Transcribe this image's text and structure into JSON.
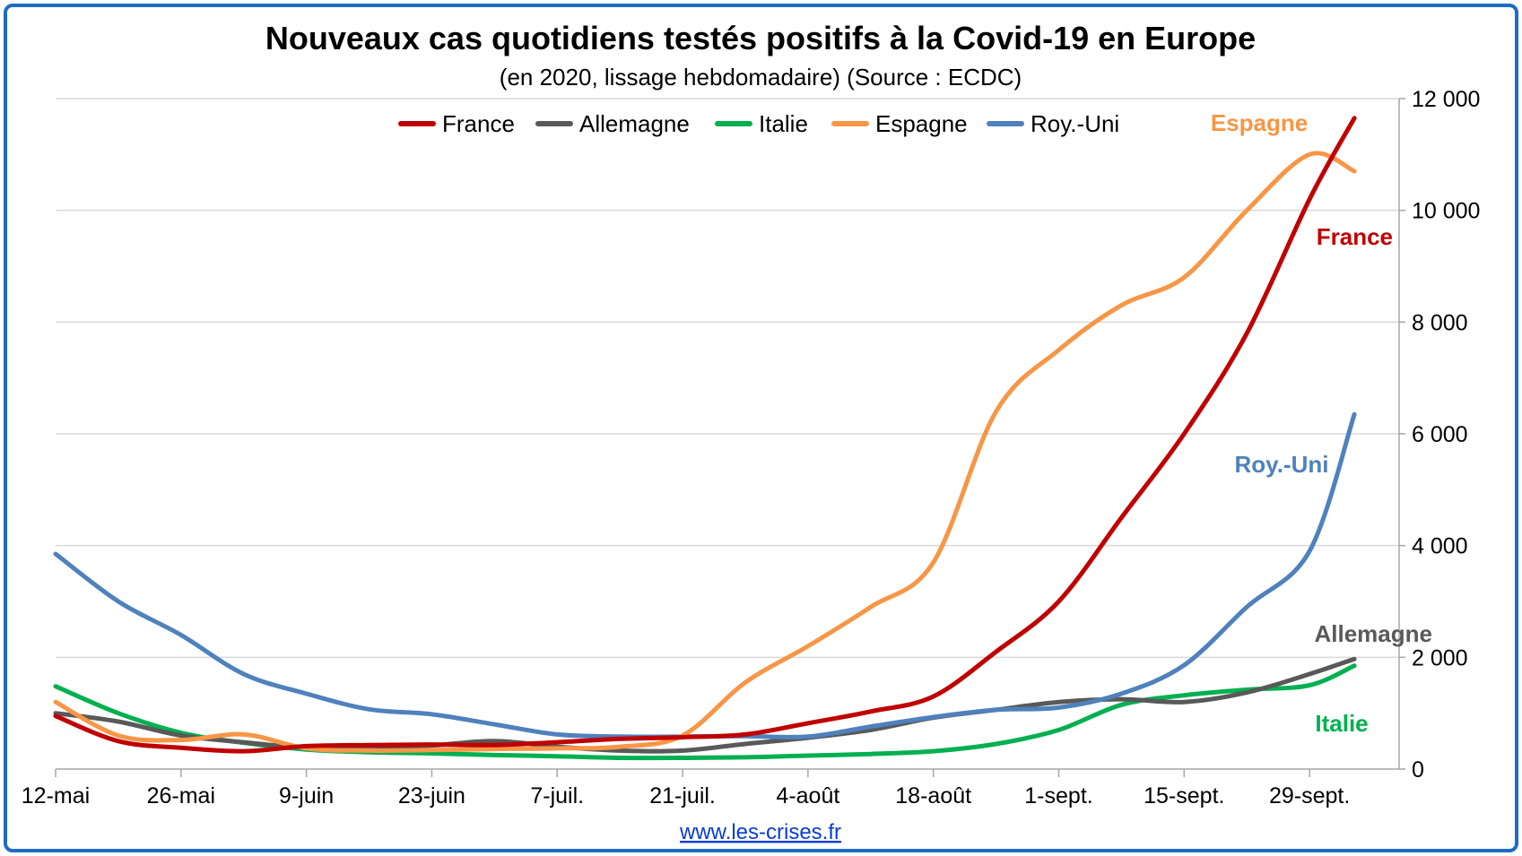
{
  "chart_data": {
    "type": "line",
    "title": "Nouveaux cas quotidiens testés positifs à la Covid-19 en Europe",
    "subtitle": "(en 2020, lissage hebdomadaire) (Source : ECDC)",
    "x_ticks": [
      "12-mai",
      "26-mai",
      "9-juin",
      "23-juin",
      "7-juil.",
      "21-juil.",
      "4-août",
      "18-août",
      "1-sept.",
      "15-sept.",
      "29-sept."
    ],
    "x": [
      0,
      7,
      14,
      21,
      28,
      35,
      42,
      49,
      56,
      63,
      70,
      77,
      84,
      91,
      98,
      105,
      112,
      119,
      126,
      133,
      140,
      145
    ],
    "ylim": [
      0,
      12000
    ],
    "y_ticks": [
      "0",
      "2 000",
      "4 000",
      "6 000",
      "8 000",
      "10 000",
      "12 000"
    ],
    "grid": true,
    "legend_position": "top",
    "series": [
      {
        "name": "France",
        "color": "#c00000",
        "end_label": "France",
        "values": [
          950,
          500,
          380,
          320,
          410,
          430,
          440,
          430,
          480,
          540,
          570,
          620,
          820,
          1030,
          1300,
          2100,
          3000,
          4500,
          6000,
          7800,
          10200,
          11650
        ]
      },
      {
        "name": "Allemagne",
        "color": "#595959",
        "end_label": "Allemagne",
        "values": [
          1000,
          850,
          600,
          480,
          380,
          360,
          420,
          500,
          400,
          330,
          330,
          450,
          560,
          700,
          920,
          1060,
          1200,
          1250,
          1200,
          1370,
          1700,
          1970
        ]
      },
      {
        "name": "Italie",
        "color": "#00b050",
        "end_label": "Italie",
        "values": [
          1480,
          1000,
          650,
          470,
          350,
          300,
          280,
          250,
          230,
          200,
          200,
          210,
          240,
          270,
          320,
          450,
          700,
          1150,
          1320,
          1420,
          1500,
          1850
        ]
      },
      {
        "name": "Espagne",
        "color": "#f79646",
        "end_label": "Espagne",
        "values": [
          1200,
          600,
          520,
          620,
          370,
          330,
          340,
          360,
          370,
          400,
          600,
          1550,
          2200,
          2900,
          3700,
          6400,
          7500,
          8300,
          8800,
          10000,
          11000,
          10700
        ]
      },
      {
        "name": "Roy.-Uni",
        "color": "#4f81bd",
        "end_label": "Roy.-Uni",
        "values": [
          3850,
          3000,
          2400,
          1700,
          1350,
          1070,
          980,
          800,
          620,
          580,
          580,
          590,
          580,
          760,
          930,
          1060,
          1100,
          1350,
          1860,
          2900,
          3900,
          6350
        ]
      }
    ]
  },
  "footer": {
    "source_link": "www.les-crises.fr"
  }
}
